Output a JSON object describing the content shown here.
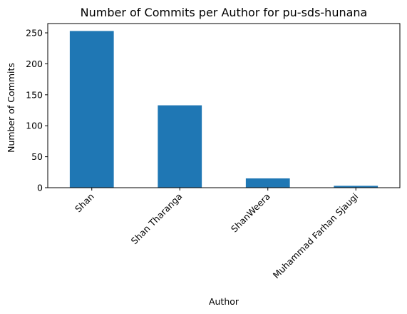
{
  "chart_data": {
    "type": "bar",
    "title": "Number of Commits per Author for pu-sds-hunana",
    "xlabel": "Author",
    "ylabel": "Number of Commits",
    "categories": [
      "Shan",
      "Shan Tharanga",
      "ShanWeera",
      "Muhammad Farhan Sjaugi"
    ],
    "values": [
      253,
      133,
      15,
      3
    ],
    "ylim": [
      0,
      265
    ],
    "yticks": [
      0,
      50,
      100,
      150,
      200,
      250
    ],
    "bar_color": "#1f77b4",
    "grid": false,
    "legend": "none"
  }
}
